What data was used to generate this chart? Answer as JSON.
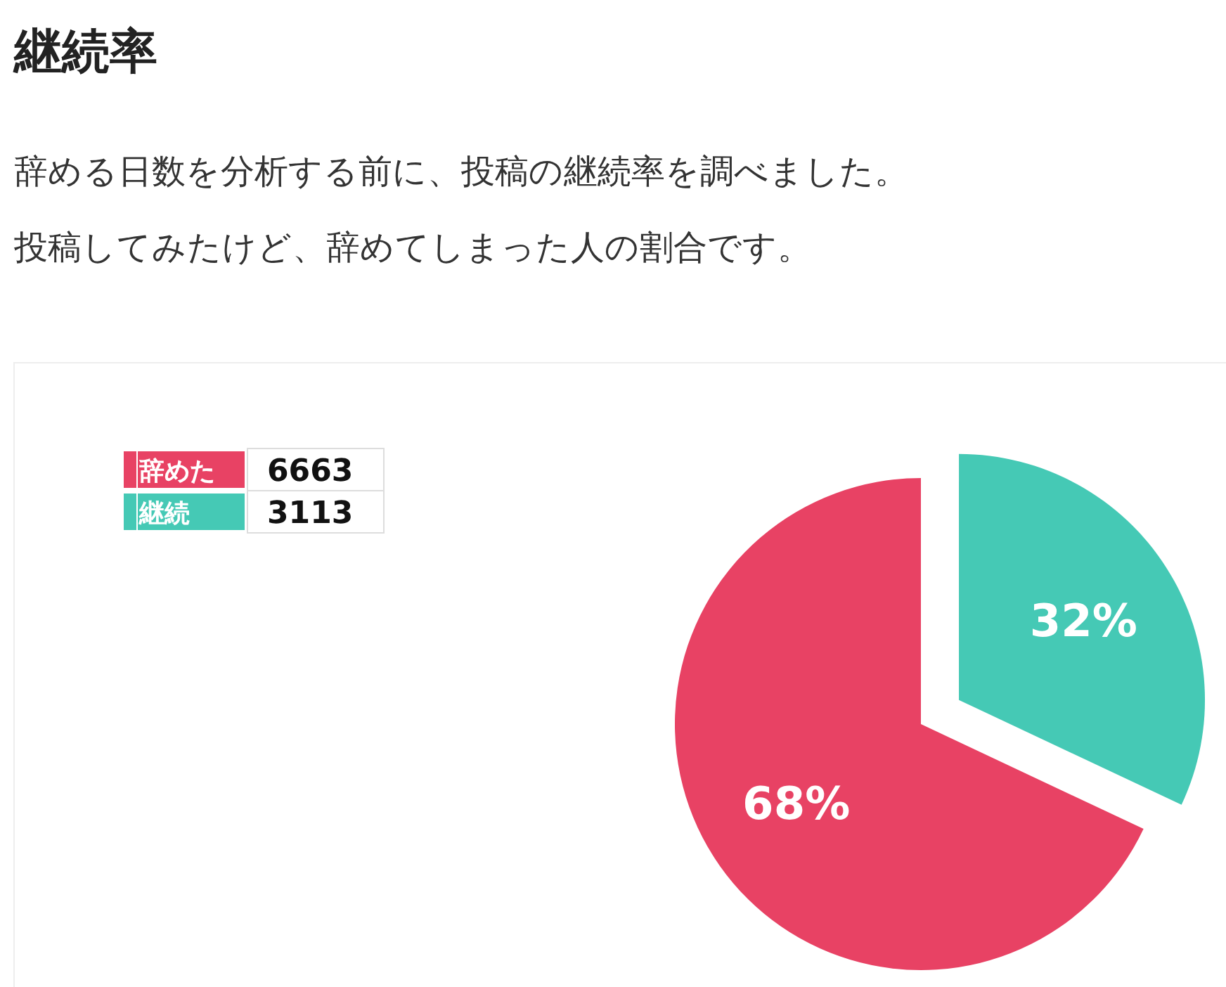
{
  "chart_data": {
    "type": "pie",
    "title": "継続率",
    "subtitle": "辞める日数を分析する前に、投稿の継続率を調べました。",
    "annotations": [
      "投稿してみたけど、辞めてしまった人の割合です。",
      "6663",
      "3113"
    ],
    "categories": [
      "辞めた",
      "継続"
    ],
    "values": [
      68,
      32
    ],
    "colors": [
      "#e84264",
      "#45c9b5"
    ],
    "value_labels": [
      "68%",
      "32%"
    ],
    "legend": "top left"
  }
}
